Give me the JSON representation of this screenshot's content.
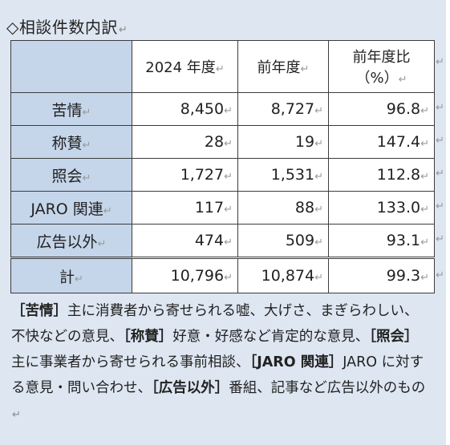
{
  "heading": "◇相談件数内訳",
  "para_mark": "↵",
  "table": {
    "columns": [
      "2024 年度",
      "前年度",
      "前年度比",
      "（%）"
    ],
    "rows": [
      {
        "label": "苦情",
        "current": "8,450",
        "previous": "8,727",
        "ratio": "96.8"
      },
      {
        "label": "称賛",
        "current": "28",
        "previous": "19",
        "ratio": "147.4"
      },
      {
        "label": "照会",
        "current": "1,727",
        "previous": "1,531",
        "ratio": "112.8"
      },
      {
        "label": "JARO 関連",
        "current": "117",
        "previous": "88",
        "ratio": "133.0"
      },
      {
        "label": "広告以外",
        "current": "474",
        "previous": "509",
        "ratio": "93.1"
      }
    ],
    "total": {
      "label": "計",
      "current": "10,796",
      "previous": "10,874",
      "ratio": "99.3"
    }
  },
  "note": {
    "t1": "［苦情］",
    "d1": "主に消費者から寄せられる嘘、大げさ、まぎらわしい、不快などの意見、",
    "t2": "［称賛］",
    "d2": "好意・好感など肯定的な意見、",
    "t3": "［照会］",
    "d3": "主に事業者から寄せられる事前相談、",
    "t4": "［JARO 関連］",
    "d4": "JARO に対する意見・問い合わせ、",
    "t5": "［広告以外］",
    "d5": "番組、記事など広告以外のもの"
  }
}
